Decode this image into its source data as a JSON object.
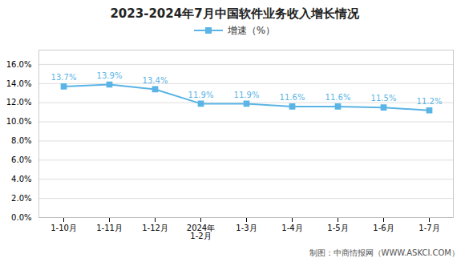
{
  "chart_data": {
    "type": "line",
    "title": "2023-2024年7月中国软件业务收入增长情况",
    "caption": "制图：中商情报网（WWW.ASKCI.COM）",
    "categories": [
      "1-10月",
      "1-11月",
      "1-12月",
      "2024年\n1-2月",
      "1-3月",
      "1-4月",
      "1-5月",
      "1-6月",
      "1-7月"
    ],
    "series": [
      {
        "name": "增速（%）",
        "color": "#5ab4e5",
        "marker": "square",
        "values": [
          13.7,
          13.9,
          13.4,
          11.9,
          11.9,
          11.6,
          11.6,
          11.5,
          11.2
        ],
        "value_labels": [
          "13.7%",
          "13.9%",
          "13.4%",
          "11.9%",
          "11.9%",
          "11.6%",
          "11.6%",
          "11.5%",
          "11.2%"
        ]
      }
    ],
    "ylim": [
      0,
      17.5
    ],
    "yticks": [
      {
        "value": 0,
        "label": "0.0%"
      },
      {
        "value": 2,
        "label": "2.0%"
      },
      {
        "value": 4,
        "label": "4.0%"
      },
      {
        "value": 6,
        "label": "6.0%"
      },
      {
        "value": 8,
        "label": "8.0%"
      },
      {
        "value": 10,
        "label": "10.0%"
      },
      {
        "value": 12,
        "label": "12.0%"
      },
      {
        "value": 14,
        "label": "14.0%"
      },
      {
        "value": 16,
        "label": "16.0%"
      }
    ],
    "grid": true,
    "legend": "top",
    "data_labels": true
  }
}
